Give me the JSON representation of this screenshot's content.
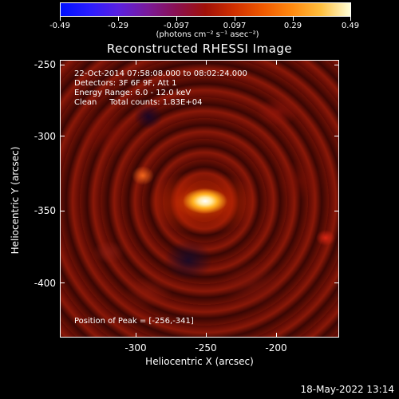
{
  "colorbar": {
    "ticks": [
      "-0.49",
      "-0.29",
      "-0.097",
      "0.097",
      "0.29",
      "0.49"
    ],
    "units": "(photons cm⁻² s⁻¹ asec⁻²)"
  },
  "title": "Reconstructed RHESSI Image",
  "info": {
    "time_range": "22-Oct-2014 07:58:08.000 to 08:02:24.000",
    "detectors": "Detectors: 3F 6F 9F, Att 1",
    "energy": "Energy Range: 6.0 - 12.0 keV",
    "clean": "Clean     Total counts: 1.83E+04"
  },
  "peak": "Position of Peak = [-256,-341]",
  "x_axis": {
    "title": "Heliocentric X (arcsec)",
    "ticks": [
      "-300",
      "-250",
      "-200"
    ]
  },
  "y_axis": {
    "title": "Heliocentric Y (arcsec)",
    "ticks": [
      "-250",
      "-300",
      "-350",
      "-400"
    ]
  },
  "timestamp": "18-May-2022 13:14"
}
